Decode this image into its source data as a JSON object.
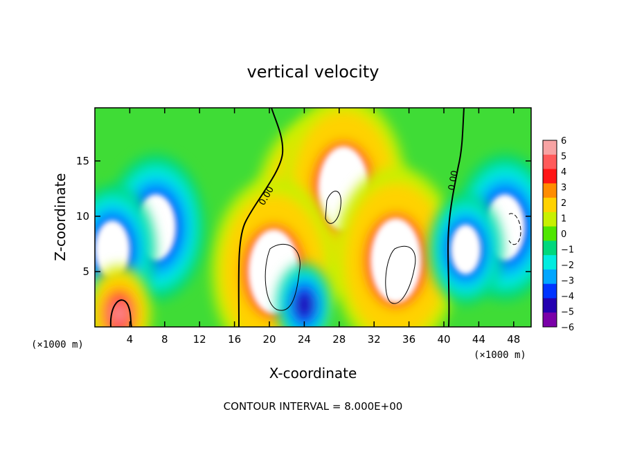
{
  "chart_data": {
    "type": "heatmap",
    "title": "vertical velocity",
    "xlabel": "X-coordinate",
    "ylabel": "Z-coordinate",
    "x_unit_note": "(×1000 m)",
    "footer": "CONTOUR INTERVAL = 8.000E+00",
    "xlim": [
      0,
      50
    ],
    "ylim": [
      0,
      19.8
    ],
    "x_ticks": [
      4,
      8,
      12,
      16,
      20,
      24,
      28,
      32,
      36,
      40,
      44,
      48
    ],
    "y_ticks": [
      5,
      10,
      15
    ],
    "colorbar": {
      "ticks": [
        6,
        5,
        4,
        3,
        2,
        1,
        0,
        -1,
        -2,
        -3,
        -4,
        -5,
        -6
      ],
      "tick_labels": [
        "6",
        "5",
        "4",
        "3",
        "2",
        "1",
        "0",
        "−1",
        "−2",
        "−3",
        "−4",
        "−5",
        "−6"
      ],
      "colors": [
        "#f7a3a3",
        "#ff5a5a",
        "#ff1515",
        "#ff8c00",
        "#ffd200",
        "#c8f000",
        "#50e600",
        "#00d87c",
        "#00ece0",
        "#00a6ff",
        "#0034ff",
        "#2400b0",
        "#7a00a8"
      ]
    },
    "background_color": "#3fdc36",
    "contour_labels": [
      "0.00",
      "0.00"
    ],
    "features": [
      {
        "kind": "updraft",
        "x": 25.5,
        "z": 10.5,
        "w": 14
      },
      {
        "kind": "updraft",
        "x": 28.5,
        "z": 12.5,
        "w": 14
      },
      {
        "kind": "updraft",
        "x": 20.5,
        "z": 5.0,
        "w": 14
      },
      {
        "kind": "updraft",
        "x": 34.5,
        "z": 6.0,
        "w": 14
      },
      {
        "kind": "downdraft",
        "x": 7.0,
        "z": 9.0,
        "w": -12
      },
      {
        "kind": "downdraft",
        "x": 2.0,
        "z": 7.0,
        "w": -10
      },
      {
        "kind": "downdraft",
        "x": 47.0,
        "z": 9.0,
        "w": -12
      },
      {
        "kind": "downdraft",
        "x": 42.5,
        "z": 7.0,
        "w": -8
      },
      {
        "kind": "downdraft",
        "x": 24.0,
        "z": 2.0,
        "w": -5
      },
      {
        "kind": "updraft",
        "x": 2.8,
        "z": 1.2,
        "w": 5
      }
    ]
  }
}
